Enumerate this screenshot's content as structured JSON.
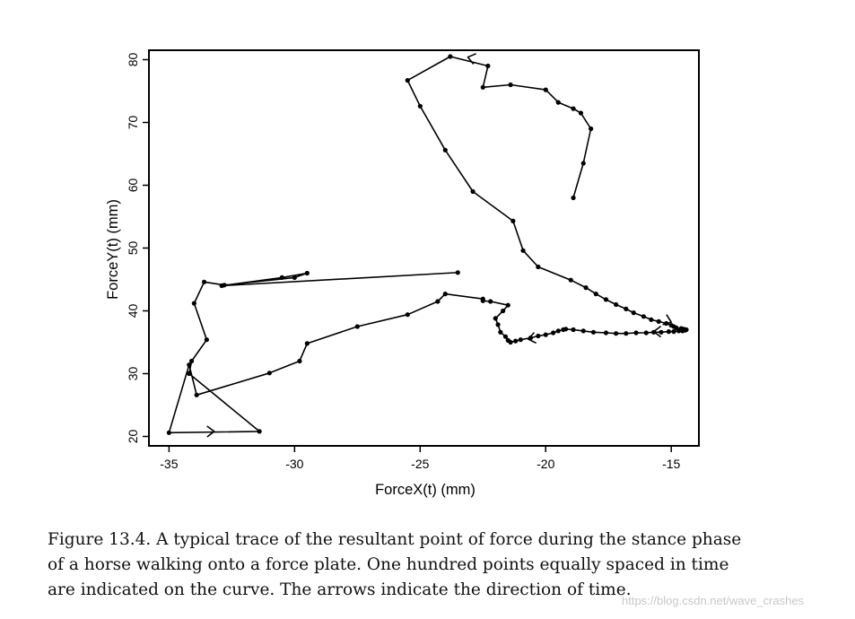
{
  "chart_data": {
    "type": "line",
    "xlabel": "ForceX(t) (mm)",
    "ylabel": "ForceY(t) (mm)",
    "xlim": [
      -35.8,
      -13.9
    ],
    "ylim": [
      18.5,
      81.5
    ],
    "xticks": [
      -35,
      -30,
      -25,
      -20,
      -15
    ],
    "yticks": [
      20,
      30,
      40,
      50,
      60,
      70,
      80
    ],
    "grid": false,
    "legend": "none",
    "series": [
      {
        "x": [
          -18.9,
          -18.5,
          -18.2,
          -18.6,
          -18.9,
          -19.5,
          -20.0,
          -21.4,
          -22.5,
          -22.3,
          -23.8,
          -25.5,
          -25.0,
          -24.0,
          -22.9,
          -21.3,
          -20.9,
          -20.3,
          -19.0,
          -18.4,
          -18.0,
          -17.6,
          -17.2,
          -16.8,
          -16.5,
          -16.1,
          -15.8,
          -15.5,
          -15.2,
          -15.0,
          -14.9,
          -14.8,
          -14.6,
          -14.5,
          -14.4,
          -14.45,
          -14.55,
          -14.7,
          -14.9,
          -15.1,
          -15.4,
          -15.7,
          -16.0,
          -16.4,
          -16.8,
          -17.2,
          -17.6,
          -18.1,
          -18.5,
          -18.9,
          -19.2,
          -19.3,
          -19.5,
          -19.7,
          -20.0,
          -20.3,
          -20.6,
          -21.0,
          -21.2,
          -21.4,
          -21.5,
          -21.6,
          -21.8,
          -21.9,
          -22.0,
          -21.7,
          -21.5,
          -22.2,
          -22.5,
          -22.5,
          -24.0,
          -24.3,
          -25.5,
          -27.5,
          -29.5,
          -29.8,
          -31.0,
          -33.9,
          -34.2,
          -35.0,
          -31.4,
          -34.2,
          -34.1,
          -33.5,
          -34.0,
          -33.6,
          -32.8,
          -30.0,
          -29.5,
          -30.5,
          -32.9,
          -23.5
        ],
        "y": [
          58.0,
          63.5,
          69.0,
          71.5,
          72.2,
          73.2,
          75.2,
          76.0,
          75.6,
          79.0,
          80.5,
          76.7,
          72.6,
          65.6,
          59.0,
          54.3,
          49.6,
          47.0,
          44.9,
          43.7,
          42.7,
          41.8,
          41.0,
          40.3,
          39.7,
          39.1,
          38.6,
          38.3,
          38.0,
          37.7,
          37.5,
          37.3,
          37.2,
          37.1,
          37.0,
          36.9,
          36.8,
          36.8,
          36.7,
          36.7,
          36.6,
          36.6,
          36.5,
          36.5,
          36.4,
          36.4,
          36.5,
          36.6,
          36.8,
          37.0,
          37.1,
          37.0,
          36.8,
          36.5,
          36.2,
          36.0,
          35.7,
          35.4,
          35.2,
          35.0,
          35.3,
          35.9,
          36.6,
          37.8,
          38.8,
          40.0,
          40.9,
          41.5,
          41.6,
          41.9,
          42.7,
          41.5,
          39.4,
          37.5,
          34.8,
          32.0,
          30.1,
          26.6,
          31.4,
          20.6,
          20.8,
          30.0,
          32.0,
          35.4,
          41.2,
          44.6,
          44.1,
          45.3,
          46.0,
          45.3,
          44.0,
          46.1
        ]
      }
    ],
    "arrows": [
      {
        "x": -20.7,
        "y": 35.5
      },
      {
        "x": -15.7,
        "y": 36.7
      },
      {
        "x": -15.0,
        "y": 38.2
      },
      {
        "x": -23.1,
        "y": 80.4
      },
      {
        "x": -33.2,
        "y": 20.8
      }
    ]
  },
  "caption": {
    "line1": "Figure 13.4. A typical trace of the resultant point of force during the stance phase",
    "line2": "of a horse walking onto a force plate. One hundred points equally spaced in time",
    "line3": "are indicated on the curve. The arrows indicate the direction of time."
  },
  "watermark": "https://blog.csdn.net/wave_crashes"
}
